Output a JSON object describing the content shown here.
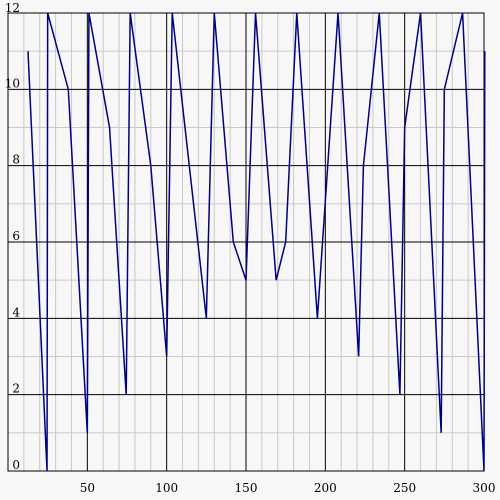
{
  "chart_data": {
    "type": "line",
    "x": [
      12.6,
      24.6,
      25,
      38,
      50,
      51,
      64,
      74.5,
      77,
      90,
      100,
      103.5,
      125,
      130,
      142,
      150,
      156,
      169,
      175,
      182,
      195,
      208,
      221,
      224,
      234,
      247,
      250,
      260,
      273,
      275,
      286.5,
      300,
      300.5
    ],
    "series": [
      {
        "color": "#000080",
        "values": [
          11,
          0,
          12,
          10,
          1,
          12,
          9,
          2,
          12,
          8,
          3,
          12,
          4,
          12,
          6,
          5,
          12,
          5,
          6,
          12,
          4,
          12,
          3,
          8,
          12,
          2,
          9,
          12,
          1,
          10,
          12,
          0,
          11
        ]
      }
    ],
    "xlim": [
      0,
      300
    ],
    "ylim": [
      0,
      12
    ],
    "xticks": [
      50,
      100,
      150,
      200,
      250,
      300
    ],
    "yticks": [
      0,
      2,
      4,
      6,
      8,
      10,
      12
    ],
    "xticks_minor": [
      10,
      20,
      30,
      40,
      60,
      70,
      80,
      90,
      110,
      120,
      130,
      140,
      160,
      170,
      180,
      190,
      210,
      220,
      230,
      240,
      260,
      270,
      280,
      290
    ],
    "yticks_minor": [
      1,
      3,
      5,
      7,
      9,
      11
    ],
    "grid": true
  }
}
